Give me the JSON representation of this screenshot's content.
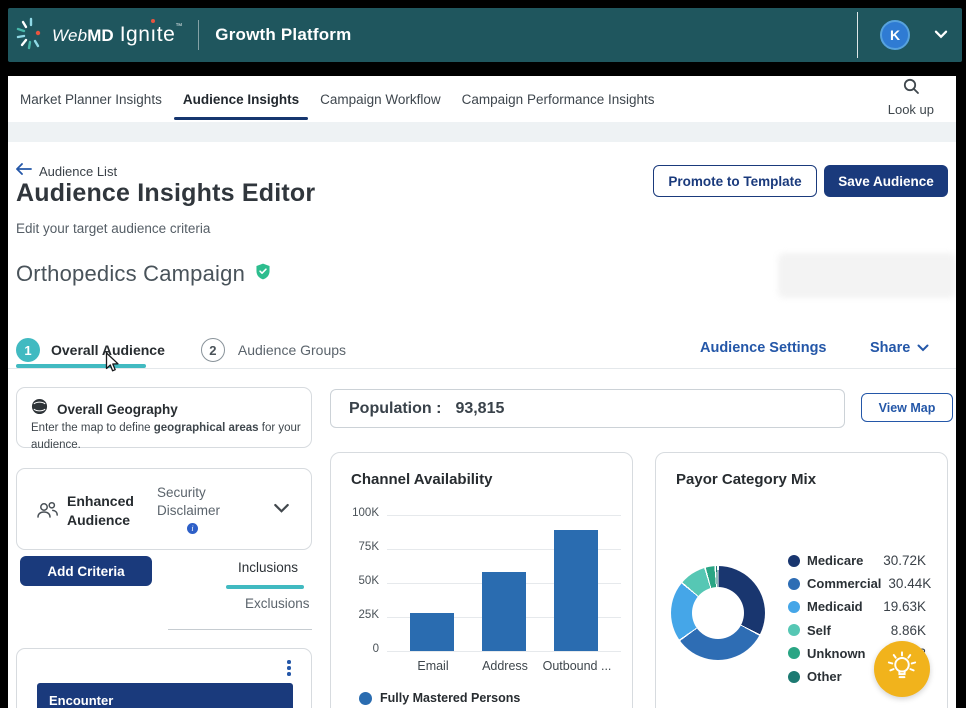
{
  "colors": {
    "header_teal": "#1f565e",
    "navy": "#1a3a7c",
    "link_blue": "#2457a8",
    "accent_teal": "#41bac1",
    "badge_green": "#2dbd8e",
    "bar_blue": "#2a6cb0",
    "fab_yellow": "#f1b31c",
    "avatar_blue": "#2f7bd3"
  },
  "header": {
    "brand_web": "Web",
    "brand_md": "MD",
    "brand_ignite_pre": "Ign",
    "brand_ignite_i": "ı",
    "brand_ignite_post": "te",
    "brand_tm": "™",
    "product": "Growth Platform",
    "avatar_initial": "K"
  },
  "nav": {
    "items": [
      {
        "label": "Market Planner Insights",
        "active": false
      },
      {
        "label": "Audience Insights",
        "active": true
      },
      {
        "label": "Campaign Workflow",
        "active": false
      },
      {
        "label": "Campaign Performance Insights",
        "active": false
      }
    ],
    "lookup_label": "Look up"
  },
  "page": {
    "breadcrumb": "Audience List",
    "title": "Audience Insights Editor",
    "subtitle": "Edit your target audience criteria",
    "promote_button": "Promote to Template",
    "save_button": "Save Audience",
    "campaign_name": "Orthopedics Campaign"
  },
  "steps": {
    "step1_number": "1",
    "step1_label": "Overall Audience",
    "step2_number": "2",
    "step2_label": "Audience Groups",
    "settings_link": "Audience Settings",
    "share_link": "Share"
  },
  "left_panel": {
    "geography": {
      "title": "Overall Geography",
      "body_prefix": "Enter the map to define ",
      "body_bold": "geographical areas",
      "body_suffix": " for your audience."
    },
    "enhanced": {
      "title": "Enhanced Audience",
      "disclaimer": "Security Disclaimer"
    },
    "add_criteria_button": "Add Criteria",
    "inclusions_tab": "Inclusions",
    "exclusions_tab": "Exclusions",
    "criteria_card_header": "Encounter"
  },
  "population": {
    "label": "Population :",
    "value": "93,815",
    "view_map_button": "View Map"
  },
  "chart_data": [
    {
      "type": "bar",
      "title": "Channel Availability",
      "categories": [
        "Email",
        "Address",
        "Outbound ..."
      ],
      "values_k": [
        28,
        58,
        89
      ],
      "values": [
        28000,
        58000,
        89000
      ],
      "ylim": [
        0,
        100000
      ],
      "ytick_labels": [
        "0",
        "25K",
        "50K",
        "75K",
        "100K"
      ],
      "grid": true,
      "bar_color": "#2a6cb0",
      "legend": [
        {
          "label": "Fully Mastered Persons",
          "color": "#2a6cb0"
        }
      ],
      "legend_position": "bottom"
    },
    {
      "type": "pie",
      "subtype": "donut",
      "title": "Payor Category Mix",
      "legend_position": "right",
      "segments": [
        {
          "label": "Medicare",
          "value_k": 30.72,
          "display_value": "30.72K",
          "color": "#19366f"
        },
        {
          "label": "Commercial",
          "value_k": 30.44,
          "display_value": "30.44K",
          "color": "#2e6db4"
        },
        {
          "label": "Medicaid",
          "value_k": 19.63,
          "display_value": "19.63K",
          "color": "#45a6e8"
        },
        {
          "label": "Self",
          "value_k": 8.86,
          "display_value": "8.86K",
          "color": "#56c7b4"
        },
        {
          "label": "Unknown",
          "value_k": 3.3,
          "display_value": "3",
          "color": "#2aa584"
        },
        {
          "label": "Other",
          "value_k": 0.9,
          "display_value": "",
          "color": "#1d7a72"
        }
      ]
    }
  ]
}
